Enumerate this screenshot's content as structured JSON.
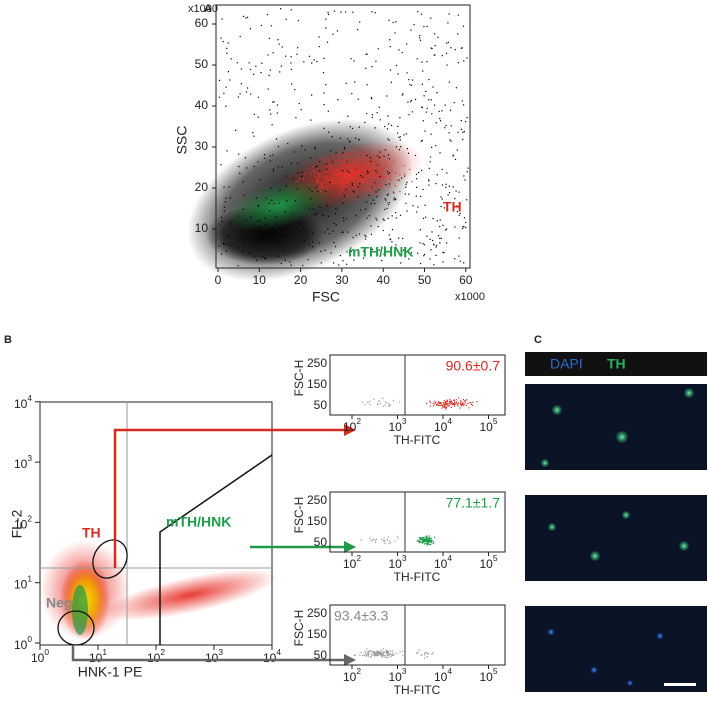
{
  "panel_a": {
    "label": "A",
    "x_label": "FSC",
    "y_label": "SSC",
    "x_multiplier": "x1000",
    "y_multiplier": "x1000",
    "x_ticks": [
      "0",
      "10",
      "20",
      "30",
      "40",
      "50",
      "60"
    ],
    "y_ticks": [
      "10",
      "20",
      "30",
      "40",
      "50",
      "60"
    ],
    "gate_th": "TH",
    "gate_mth": "mTH/HNK"
  },
  "panel_b": {
    "label": "B",
    "y_label": "FL-2",
    "x_label": "HNK-1 PE",
    "tick_base": "10",
    "x_exponents": [
      "0",
      "1",
      "2",
      "3",
      "4"
    ],
    "y_exponents": [
      "0",
      "1",
      "2",
      "3",
      "4"
    ],
    "gate_th": "TH",
    "gate_mth": "mTH/HNK",
    "gate_neg": "Neg",
    "subplot_y_label": "FSC-H",
    "subplot_x_label": "TH-FITC",
    "subplot_y_ticks": [
      "50",
      "150",
      "250"
    ],
    "subplot_x_exponents": [
      "2",
      "3",
      "4",
      "5"
    ],
    "subplots": [
      {
        "value": "90.6±0.7"
      },
      {
        "value": "77.1±1.7"
      },
      {
        "value": "93.4±3.3"
      }
    ]
  },
  "panel_c": {
    "label": "C",
    "stain_dapi": "DAPI",
    "stain_th": "TH"
  }
}
